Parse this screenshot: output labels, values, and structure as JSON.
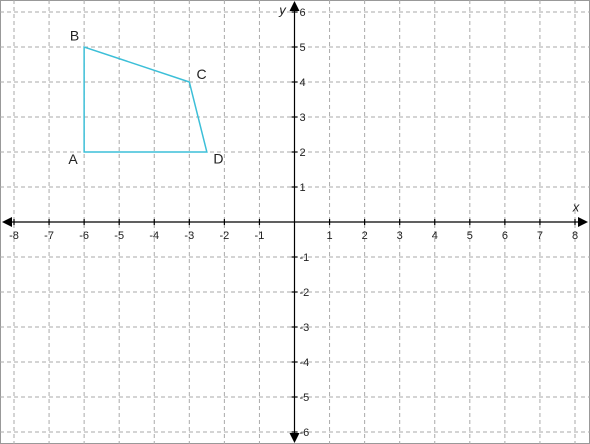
{
  "chart_data": {
    "type": "polygon",
    "x_label": "x",
    "y_label": "y",
    "x": [
      -6,
      -6,
      -3,
      -2.5
    ],
    "values": [
      2,
      5,
      4,
      2
    ],
    "point_labels": [
      "A",
      "B",
      "C",
      "D"
    ],
    "color": "#3cbfd8",
    "xlim": [
      -8,
      8
    ],
    "ylim": [
      -6,
      6
    ],
    "xticks": [
      -8,
      -7,
      -6,
      -5,
      -4,
      -3,
      -2,
      -1,
      1,
      2,
      3,
      4,
      5,
      6,
      7,
      8
    ],
    "yticks": [
      -6,
      -5,
      -4,
      -3,
      -2,
      -1,
      1,
      2,
      3,
      4,
      5,
      6
    ],
    "grid": true
  }
}
